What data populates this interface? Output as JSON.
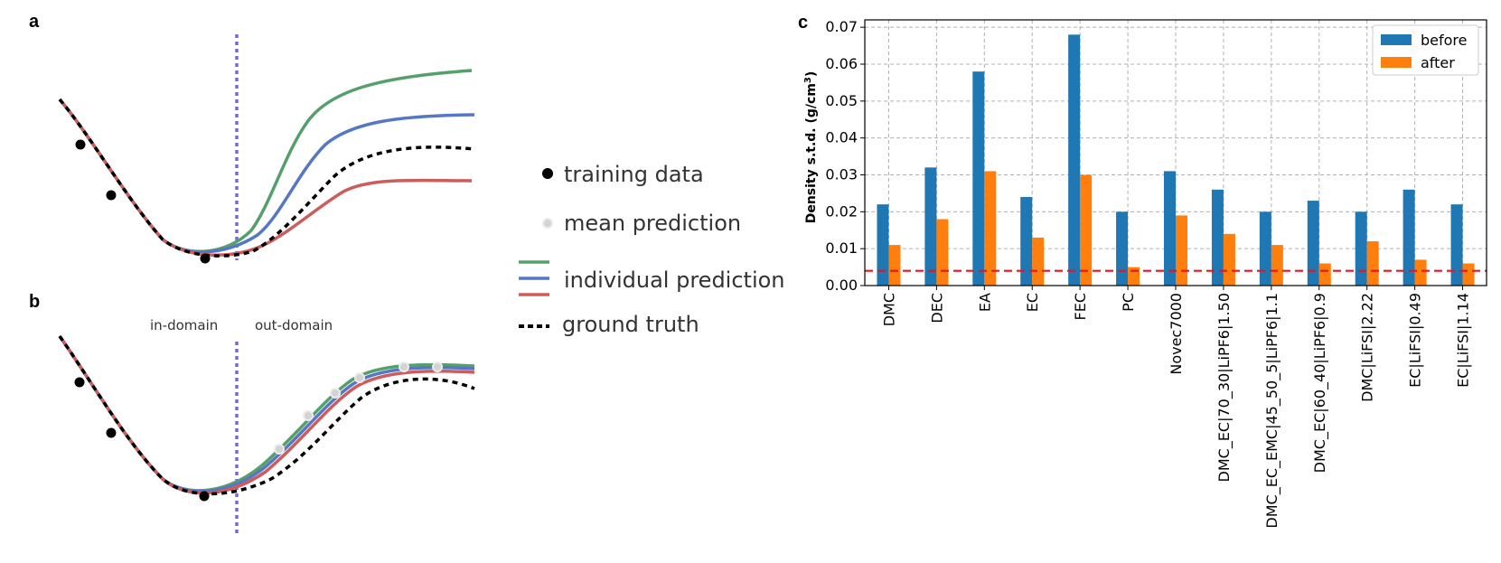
{
  "panels": {
    "a": {
      "letter": "a"
    },
    "b": {
      "letter": "b",
      "in_label": "in-domain",
      "out_label": "out-domain"
    },
    "c": {
      "letter": "c"
    }
  },
  "legend": {
    "training": "training data",
    "mean": "mean prediction",
    "individual": "individual prediction",
    "truth": "ground truth"
  },
  "colors": {
    "green": "#55a06a",
    "blue": "#5577c4",
    "red": "#cd5c5c",
    "truth": "#000000",
    "domain_line": "#7b68d6",
    "before": "#1f77b4",
    "after": "#ff7f0e",
    "threshold": "#e8141e"
  },
  "chart_data": {
    "type": "bar",
    "categories": [
      "DMC",
      "DEC",
      "EA",
      "EC",
      "FEC",
      "PC",
      "Novec7000",
      "DMC_EC|70_30|LiPF6|1.50",
      "DMC_EC_EMC|45_50_5|LiPF6|1.1",
      "DMC_EC|60_40|LiPF6|0.9",
      "DMC|LiFSI|2.22",
      "EC|LiFSI|0.49",
      "EC|LiFSI|1.14"
    ],
    "series": [
      {
        "name": "before",
        "values": [
          0.022,
          0.032,
          0.058,
          0.024,
          0.068,
          0.02,
          0.031,
          0.026,
          0.02,
          0.023,
          0.02,
          0.026,
          0.022
        ]
      },
      {
        "name": "after",
        "values": [
          0.011,
          0.018,
          0.031,
          0.013,
          0.03,
          0.005,
          0.019,
          0.014,
          0.011,
          0.006,
          0.012,
          0.007,
          0.006
        ]
      }
    ],
    "threshold": 0.004,
    "ylabel_main": "Density s.t.d. (g/cm",
    "ylabel_sup": "3",
    "ylabel_end": ")",
    "ylim": [
      0,
      0.072
    ],
    "yticks": [
      "0.00",
      "0.01",
      "0.02",
      "0.03",
      "0.04",
      "0.05",
      "0.06",
      "0.07"
    ],
    "grid": true,
    "legend_position": "top-right"
  }
}
